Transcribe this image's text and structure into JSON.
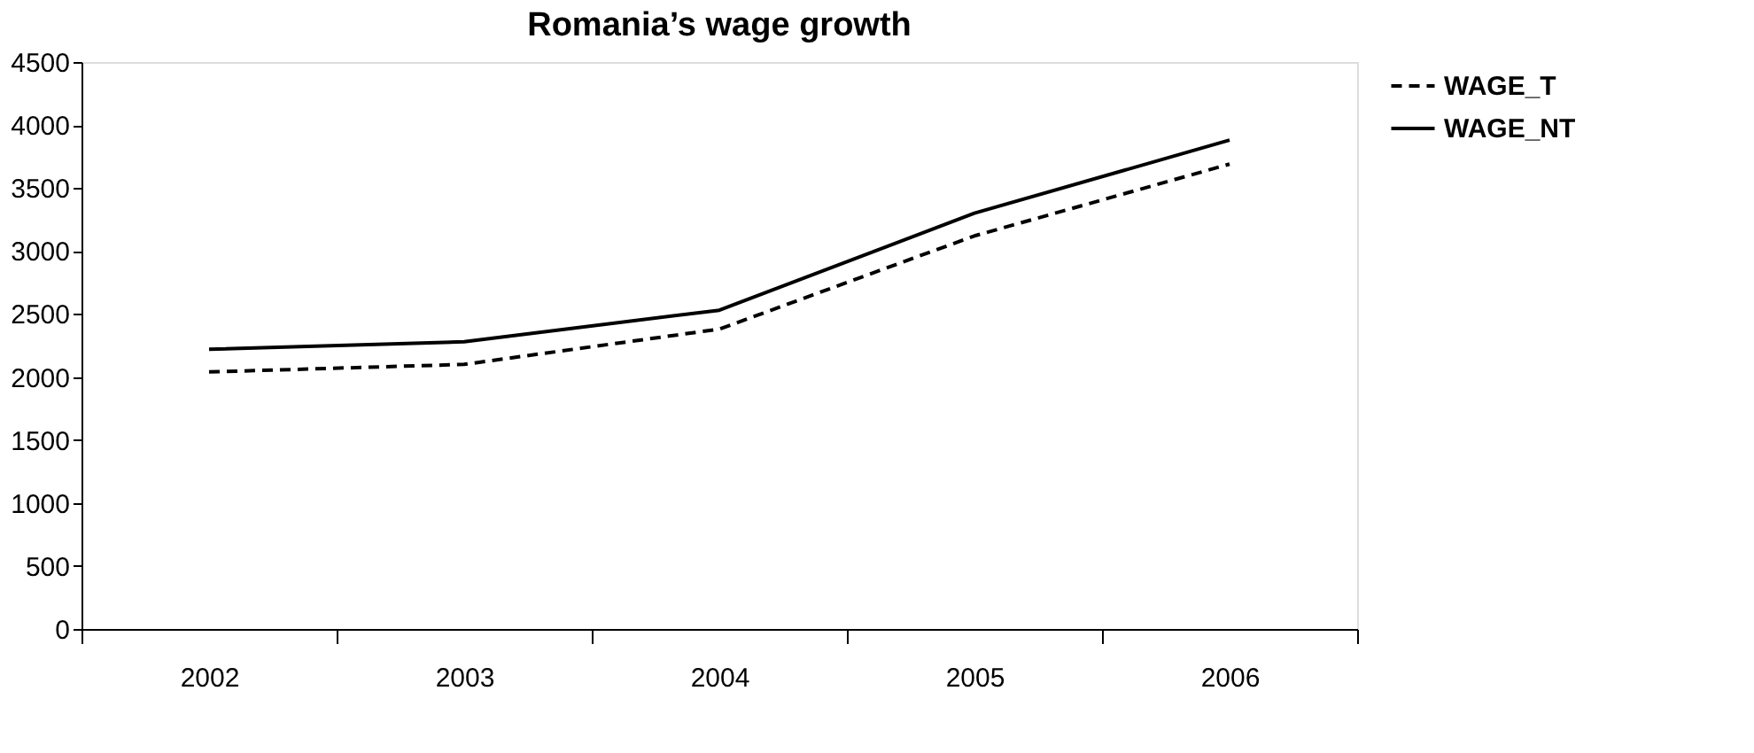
{
  "chart_data": {
    "type": "line",
    "title": "Romania’s wage growth",
    "categories": [
      "2002",
      "2003",
      "2004",
      "2005",
      "2006"
    ],
    "series": [
      {
        "name": "WAGE_T",
        "color": "#000000",
        "line_style": "dashed",
        "values": [
          2040,
          2100,
          2380,
          3120,
          3690
        ]
      },
      {
        "name": "WAGE_NT",
        "color": "#000000",
        "line_style": "solid",
        "values": [
          2220,
          2280,
          2530,
          3300,
          3880
        ]
      }
    ],
    "ylim": [
      0,
      4500
    ],
    "yticks": [
      0,
      500,
      1000,
      1500,
      2000,
      2500,
      3000,
      3500,
      4000,
      4500
    ],
    "grid": false,
    "legend": "right",
    "marker": "none"
  }
}
